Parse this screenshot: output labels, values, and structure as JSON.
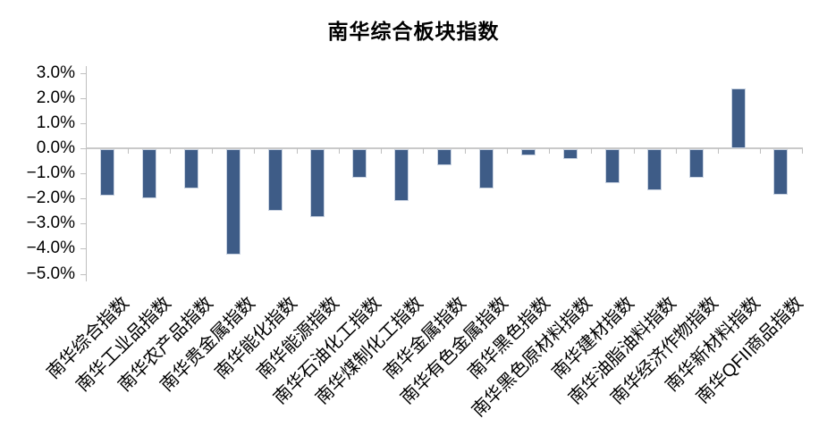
{
  "chart_data": {
    "type": "bar",
    "title": "南华综合板块指数",
    "categories": [
      "南华综合指数",
      "南华工业品指数",
      "南华农产品指数",
      "南华贵金属指数",
      "南华能化指数",
      "南华能源指数",
      "南华石油化工指数",
      "南华煤制化工指数",
      "南华金属指数",
      "南华有色金属指数",
      "南华黑色指数",
      "南华黑色原材料指数",
      "南华建材指数",
      "南华油脂油料指数",
      "南华经济作物指数",
      "南华新材料指数",
      "南华QFII商品指数"
    ],
    "values": [
      -1.85,
      -1.95,
      -1.55,
      -4.2,
      -2.45,
      -2.7,
      -1.15,
      -2.05,
      -0.65,
      -1.55,
      -0.25,
      -0.4,
      -1.35,
      -1.65,
      -1.15,
      2.4,
      -1.8
    ],
    "unit": "%",
    "xlabel": "",
    "ylabel": "",
    "ylim": [
      -5,
      3
    ],
    "ytick_step": 1,
    "ytick_labels": [
      "3.0%",
      "2.0%",
      "1.0%",
      "0.0%",
      "−1.0%",
      "−2.0%",
      "−3.0%",
      "−4.0%",
      "−5.0%"
    ],
    "grid": "off",
    "legend": "none",
    "colors": {
      "bar_fill": "#3E5C87",
      "bar_border": "#C8D2E1",
      "axis": "#BFBFBF",
      "text": "#000000"
    }
  }
}
